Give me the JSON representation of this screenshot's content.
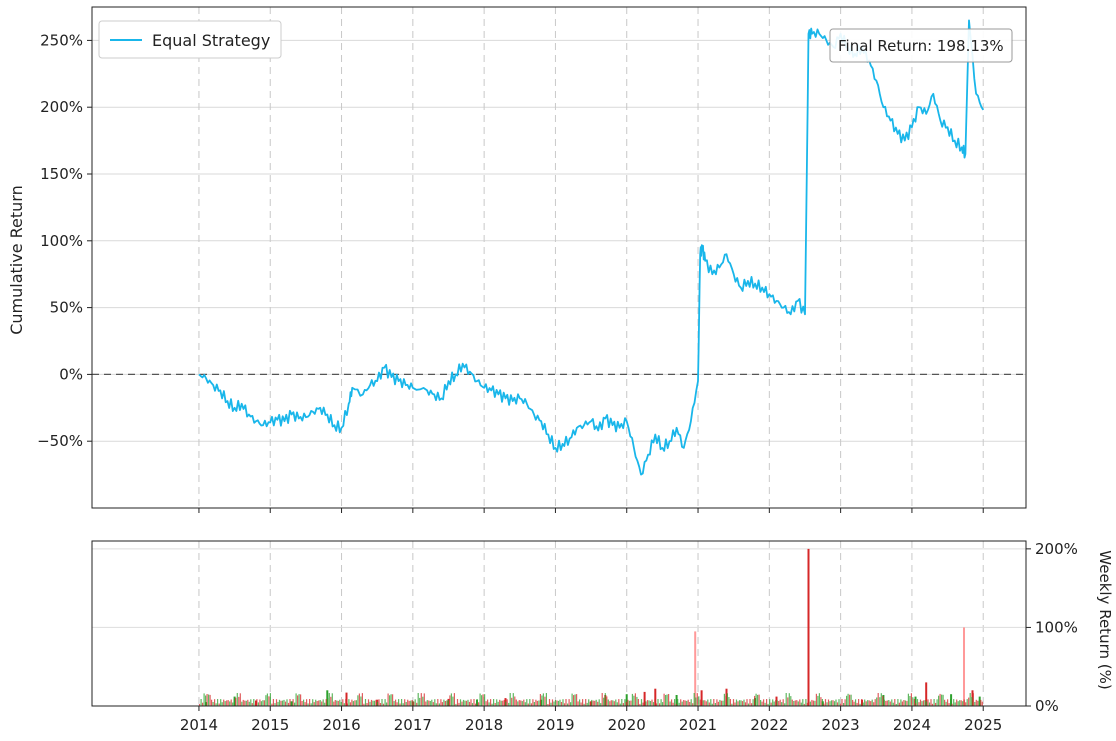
{
  "chart_data": [
    {
      "type": "line",
      "ylabel": "Cumulative Return",
      "legend": {
        "placement": "top-left",
        "entries": [
          "Equal Strategy"
        ]
      },
      "annotation": "Final Return: 198.13%",
      "yticks": [
        "250%",
        "200%",
        "150%",
        "100%",
        "50%",
        "0%",
        "−50%"
      ],
      "ytick_values": [
        250,
        200,
        150,
        100,
        50,
        0,
        -50
      ],
      "xticks": [
        "2014",
        "2015",
        "2016",
        "2017",
        "2018",
        "2019",
        "2020",
        "2021",
        "2022",
        "2023",
        "2024",
        "2025"
      ],
      "ylim": [
        -100,
        275
      ],
      "xlim": [
        2012.5,
        2025.6
      ],
      "grid": true,
      "zero_line": true,
      "colors": {
        "line": "#19b6ea",
        "zero": "#555555",
        "grid": "#d9d9d9"
      },
      "series": [
        {
          "name": "Equal Strategy",
          "x": [
            2014.0,
            2014.1,
            2014.2,
            2014.3,
            2014.4,
            2014.5,
            2014.6,
            2014.7,
            2014.8,
            2014.9,
            2015.0,
            2015.1,
            2015.2,
            2015.3,
            2015.4,
            2015.5,
            2015.6,
            2015.7,
            2015.8,
            2015.9,
            2016.0,
            2016.1,
            2016.15,
            2016.3,
            2016.4,
            2016.5,
            2016.6,
            2016.7,
            2016.8,
            2016.9,
            2017.0,
            2017.2,
            2017.3,
            2017.4,
            2017.5,
            2017.6,
            2017.7,
            2017.8,
            2017.9,
            2018.0,
            2018.1,
            2018.2,
            2018.3,
            2018.4,
            2018.5,
            2018.6,
            2018.7,
            2018.8,
            2018.9,
            2019.0,
            2019.1,
            2019.2,
            2019.3,
            2019.4,
            2019.5,
            2019.6,
            2019.7,
            2019.8,
            2019.9,
            2020.0,
            2020.1,
            2020.2,
            2020.3,
            2020.4,
            2020.5,
            2020.6,
            2020.7,
            2020.8,
            2020.9,
            2021.0,
            2021.03,
            2021.06,
            2021.1,
            2021.2,
            2021.3,
            2021.4,
            2021.5,
            2021.6,
            2021.7,
            2021.8,
            2021.9,
            2022.0,
            2022.1,
            2022.2,
            2022.3,
            2022.4,
            2022.5,
            2022.55,
            2022.6,
            2022.7,
            2022.8,
            2022.9,
            2023.0,
            2023.1,
            2023.2,
            2023.3,
            2023.4,
            2023.5,
            2023.6,
            2023.7,
            2023.8,
            2023.9,
            2024.0,
            2024.1,
            2024.2,
            2024.3,
            2024.4,
            2024.5,
            2024.6,
            2024.7,
            2024.75,
            2024.8,
            2024.9,
            2025.0
          ],
          "y": [
            0,
            -3,
            -8,
            -12,
            -20,
            -25,
            -22,
            -30,
            -35,
            -38,
            -36,
            -34,
            -35,
            -30,
            -33,
            -32,
            -28,
            -25,
            -30,
            -38,
            -40,
            -22,
            -10,
            -15,
            -8,
            -5,
            5,
            -2,
            -5,
            -8,
            -10,
            -12,
            -15,
            -18,
            -5,
            0,
            8,
            2,
            -5,
            -10,
            -12,
            -15,
            -18,
            -20,
            -18,
            -22,
            -30,
            -35,
            -45,
            -55,
            -52,
            -48,
            -40,
            -38,
            -35,
            -42,
            -33,
            -38,
            -40,
            -35,
            -55,
            -75,
            -60,
            -45,
            -55,
            -50,
            -40,
            -55,
            -35,
            -5,
            90,
            95,
            85,
            75,
            80,
            90,
            75,
            65,
            70,
            68,
            65,
            60,
            55,
            50,
            45,
            55,
            45,
            255,
            255,
            255,
            250,
            245,
            255,
            245,
            240,
            245,
            235,
            220,
            200,
            190,
            180,
            175,
            185,
            200,
            195,
            210,
            190,
            185,
            175,
            170,
            165,
            265,
            210,
            198
          ]
        }
      ]
    },
    {
      "type": "bar",
      "ylabel": "Weekly Return (%)",
      "yticks": [
        "200%",
        "100%",
        "0%"
      ],
      "ytick_values": [
        200,
        100,
        0
      ],
      "xticks": [
        "2014",
        "2015",
        "2016",
        "2017",
        "2018",
        "2019",
        "2020",
        "2021",
        "2022",
        "2023",
        "2024",
        "2025"
      ],
      "ylim": [
        0,
        210
      ],
      "grid": true,
      "colors": {
        "positive": "#2ca02c",
        "negative": "#d62728",
        "spike": "#ff9999"
      },
      "bars": [
        {
          "x": 2014.1,
          "value": 5,
          "color": "positive"
        },
        {
          "x": 2014.5,
          "value": 12,
          "color": "positive"
        },
        {
          "x": 2014.8,
          "value": 7,
          "color": "negative"
        },
        {
          "x": 2015.3,
          "value": 6,
          "color": "positive"
        },
        {
          "x": 2015.8,
          "value": 20,
          "color": "positive"
        },
        {
          "x": 2016.07,
          "value": 17,
          "color": "negative"
        },
        {
          "x": 2016.5,
          "value": 8,
          "color": "negative"
        },
        {
          "x": 2017.0,
          "value": 6,
          "color": "positive"
        },
        {
          "x": 2017.5,
          "value": 9,
          "color": "negative"
        },
        {
          "x": 2017.9,
          "value": 8,
          "color": "positive"
        },
        {
          "x": 2018.3,
          "value": 10,
          "color": "negative"
        },
        {
          "x": 2018.8,
          "value": 8,
          "color": "positive"
        },
        {
          "x": 2019.5,
          "value": 6,
          "color": "negative"
        },
        {
          "x": 2019.7,
          "value": 14,
          "color": "negative"
        },
        {
          "x": 2020.0,
          "value": 15,
          "color": "positive"
        },
        {
          "x": 2020.25,
          "value": 18,
          "color": "negative"
        },
        {
          "x": 2020.4,
          "value": 22,
          "color": "negative"
        },
        {
          "x": 2020.7,
          "value": 14,
          "color": "positive"
        },
        {
          "x": 2020.96,
          "value": 95,
          "color": "spike"
        },
        {
          "x": 2021.05,
          "value": 20,
          "color": "negative"
        },
        {
          "x": 2021.4,
          "value": 22,
          "color": "negative"
        },
        {
          "x": 2021.8,
          "value": 10,
          "color": "positive"
        },
        {
          "x": 2022.1,
          "value": 12,
          "color": "negative"
        },
        {
          "x": 2022.55,
          "value": 200,
          "color": "negative"
        },
        {
          "x": 2022.75,
          "value": 6,
          "color": "positive"
        },
        {
          "x": 2023.3,
          "value": 8,
          "color": "negative"
        },
        {
          "x": 2023.6,
          "value": 14,
          "color": "positive"
        },
        {
          "x": 2024.05,
          "value": 12,
          "color": "positive"
        },
        {
          "x": 2024.2,
          "value": 30,
          "color": "negative"
        },
        {
          "x": 2024.55,
          "value": 15,
          "color": "positive"
        },
        {
          "x": 2024.73,
          "value": 100,
          "color": "spike"
        },
        {
          "x": 2024.85,
          "value": 20,
          "color": "negative"
        },
        {
          "x": 2024.95,
          "value": 12,
          "color": "positive"
        }
      ]
    }
  ]
}
